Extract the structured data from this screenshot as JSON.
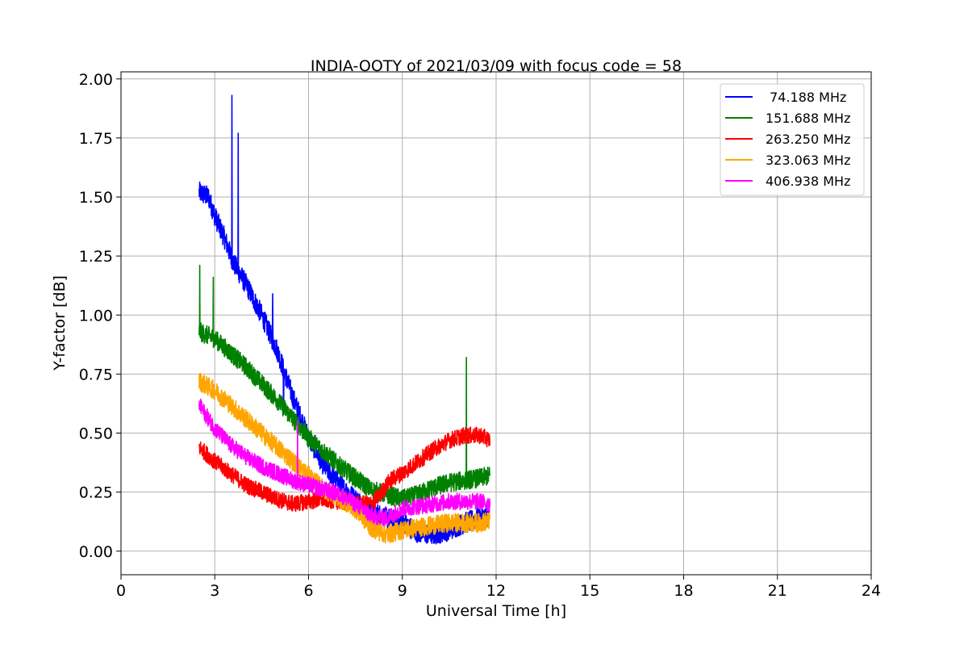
{
  "chart_data": {
    "type": "line",
    "title": "INDIA-OOTY of 2021/03/09 with focus code = 58",
    "xlabel": "Universal Time [h]",
    "ylabel": "Y-factor [dB]",
    "xlim": [
      0,
      24
    ],
    "ylim": [
      -0.1,
      2.03
    ],
    "xticks": [
      0,
      3,
      6,
      9,
      12,
      15,
      18,
      21,
      24
    ],
    "xtick_labels": [
      "0",
      "3",
      "6",
      "9",
      "12",
      "15",
      "18",
      "21",
      "24"
    ],
    "yticks": [
      0.0,
      0.25,
      0.5,
      0.75,
      1.0,
      1.25,
      1.5,
      1.75,
      2.0
    ],
    "ytick_labels": [
      "0.00",
      "0.25",
      "0.50",
      "0.75",
      "1.00",
      "1.25",
      "1.50",
      "1.75",
      "2.00"
    ],
    "grid": true,
    "legend_position": "top-right",
    "series": [
      {
        "name": " 74.188 MHz",
        "color": "#0000ff",
        "noise": 0.045,
        "x": [
          2.5,
          2.8,
          3.0,
          3.3,
          3.6,
          4.0,
          4.5,
          5.0,
          5.5,
          6.0,
          6.5,
          7.0,
          7.5,
          8.0,
          8.5,
          9.0,
          9.5,
          10.0,
          10.5,
          11.0,
          11.5,
          11.8
        ],
        "y": [
          1.52,
          1.5,
          1.42,
          1.33,
          1.22,
          1.13,
          1.0,
          0.85,
          0.65,
          0.48,
          0.36,
          0.28,
          0.22,
          0.17,
          0.14,
          0.12,
          0.08,
          0.07,
          0.09,
          0.12,
          0.14,
          0.15
        ],
        "spikes": [
          [
            3.55,
            1.93
          ],
          [
            3.75,
            1.77
          ],
          [
            4.85,
            1.09
          ],
          [
            5.2,
            0.58
          ]
        ]
      },
      {
        "name": "151.688 MHz",
        "color": "#008000",
        "noise": 0.04,
        "x": [
          2.5,
          3.0,
          3.5,
          4.0,
          4.5,
          5.0,
          5.5,
          6.0,
          6.5,
          7.0,
          7.5,
          8.0,
          8.5,
          9.0,
          9.5,
          10.0,
          10.5,
          11.0,
          11.5,
          11.8
        ],
        "y": [
          0.93,
          0.9,
          0.84,
          0.78,
          0.71,
          0.64,
          0.56,
          0.48,
          0.42,
          0.36,
          0.31,
          0.26,
          0.24,
          0.22,
          0.24,
          0.27,
          0.29,
          0.3,
          0.31,
          0.32
        ],
        "spikes": [
          [
            2.52,
            1.21
          ],
          [
            2.95,
            1.16
          ],
          [
            11.05,
            0.82
          ]
        ]
      },
      {
        "name": "263.250 MHz",
        "color": "#ff0000",
        "noise": 0.035,
        "x": [
          2.5,
          3.0,
          3.5,
          4.0,
          4.5,
          5.0,
          5.5,
          6.0,
          6.5,
          7.0,
          7.5,
          8.0,
          8.3,
          8.6,
          9.0,
          9.5,
          10.0,
          10.5,
          11.0,
          11.5,
          11.8
        ],
        "y": [
          0.44,
          0.38,
          0.33,
          0.28,
          0.25,
          0.22,
          0.2,
          0.21,
          0.22,
          0.21,
          0.2,
          0.2,
          0.24,
          0.3,
          0.33,
          0.38,
          0.43,
          0.47,
          0.49,
          0.49,
          0.47
        ],
        "spikes": []
      },
      {
        "name": "323.063 MHz",
        "color": "#ffa500",
        "noise": 0.04,
        "x": [
          2.5,
          3.0,
          3.5,
          4.0,
          4.5,
          5.0,
          5.5,
          6.0,
          6.5,
          7.0,
          7.5,
          8.0,
          8.5,
          9.0,
          9.5,
          10.0,
          10.5,
          11.0,
          11.5,
          11.8
        ],
        "y": [
          0.72,
          0.68,
          0.62,
          0.56,
          0.5,
          0.44,
          0.38,
          0.32,
          0.26,
          0.22,
          0.18,
          0.1,
          0.07,
          0.09,
          0.1,
          0.11,
          0.12,
          0.12,
          0.12,
          0.13
        ],
        "spikes": []
      },
      {
        "name": "406.938 MHz",
        "color": "#ff00ff",
        "noise": 0.035,
        "x": [
          2.5,
          3.0,
          3.5,
          4.0,
          4.5,
          5.0,
          5.5,
          6.0,
          6.5,
          7.0,
          7.5,
          8.0,
          8.5,
          9.0,
          9.5,
          10.0,
          10.5,
          11.0,
          11.5,
          11.8
        ],
        "y": [
          0.62,
          0.52,
          0.45,
          0.4,
          0.36,
          0.33,
          0.3,
          0.28,
          0.26,
          0.24,
          0.2,
          0.15,
          0.14,
          0.18,
          0.19,
          0.2,
          0.21,
          0.21,
          0.21,
          0.2
        ],
        "spikes": [
          [
            5.65,
            0.55
          ]
        ]
      }
    ]
  }
}
